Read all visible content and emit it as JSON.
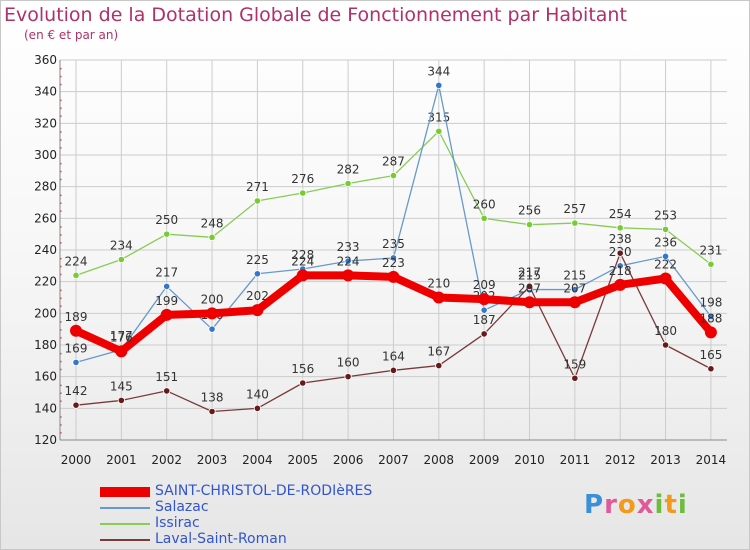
{
  "header": {
    "title": "Evolution de la Dotation Globale de Fonctionnement par Habitant",
    "subtitle": "(en € et par an)"
  },
  "logo": {
    "text": "Proxiti",
    "colors": [
      "#3a8fd8",
      "#e05a9a",
      "#f19a1c",
      "#6cbd3c"
    ]
  },
  "chart_data": {
    "type": "line",
    "title": "Evolution de la Dotation Globale de Fonctionnement par Habitant",
    "subtitle": "(en € et par an)",
    "xlabel": "",
    "ylabel": "",
    "ylim": [
      120,
      360
    ],
    "yticks": [
      120,
      140,
      160,
      180,
      200,
      220,
      240,
      260,
      280,
      300,
      320,
      340,
      360
    ],
    "grid": true,
    "legend_position": "bottom-left",
    "categories": [
      "2000",
      "2001",
      "2002",
      "2003",
      "2004",
      "2005",
      "2006",
      "2007",
      "2008",
      "2009",
      "2010",
      "2011",
      "2012",
      "2013",
      "2014"
    ],
    "series": [
      {
        "name": "Issirac",
        "color": "#88cc55",
        "marker_color": "#77cc33",
        "style": "thin",
        "values": [
          224,
          234,
          250,
          248,
          271,
          276,
          282,
          287,
          315,
          260,
          256,
          257,
          254,
          253,
          231
        ]
      },
      {
        "name": "Salazac",
        "color": "#6699cc",
        "marker_color": "#3377cc",
        "style": "thin",
        "values": [
          169,
          177,
          217,
          190,
          225,
          228,
          233,
          235,
          344,
          202,
          215,
          215,
          230,
          236,
          198
        ]
      },
      {
        "name": "Laval-Saint-Roman",
        "color": "#7a3a3a",
        "marker_color": "#661a1a",
        "style": "thin",
        "values": [
          142,
          145,
          151,
          138,
          140,
          156,
          160,
          164,
          167,
          187,
          217,
          159,
          238,
          180,
          165
        ]
      },
      {
        "name": "SAINT-CHRISTOL-DE-RODIèRES",
        "color": "#ee0000",
        "marker_color": "#ee0000",
        "style": "thick",
        "values": [
          189,
          176,
          199,
          200,
          202,
          224,
          224,
          223,
          210,
          209,
          207,
          207,
          218,
          222,
          188
        ]
      }
    ],
    "legend_order": [
      "SAINT-CHRISTOL-DE-RODIèRES",
      "Salazac",
      "Issirac",
      "Laval-Saint-Roman"
    ]
  }
}
